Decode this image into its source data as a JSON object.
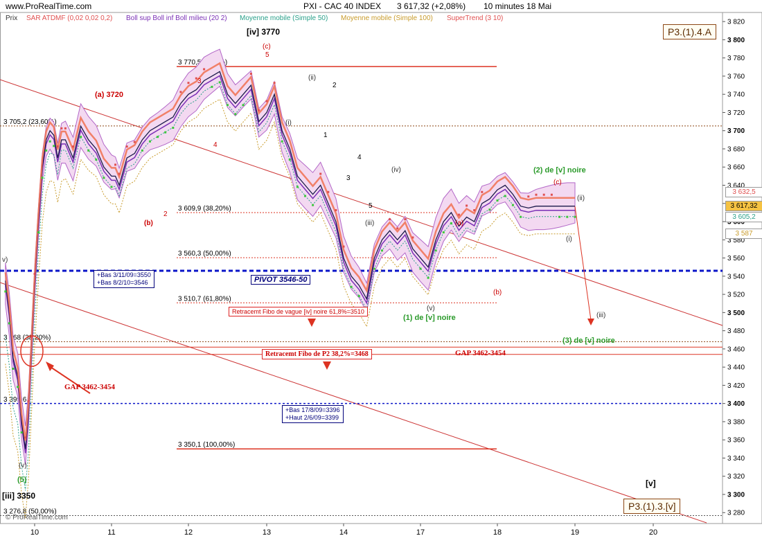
{
  "header": {
    "site": "www.ProRealTime.com",
    "instrument": "PXI - CAC 40 INDEX",
    "quote": "3 617,32 (+2,08%)",
    "period": "10 minutes  18 Mai"
  },
  "legend": [
    {
      "text": "Prix",
      "color": "#333333"
    },
    {
      "text": "SAR ATDMF (0,02 0,02 0,2)",
      "color": "#e05050"
    },
    {
      "text": "Boll sup Boll inf Boll milieu (20 2)",
      "color": "#7a2fb5"
    },
    {
      "text": "Moyenne mobile (Simple 50)",
      "color": "#2aa08a"
    },
    {
      "text": "Moyenne mobile (Simple 100)",
      "color": "#c89b2b"
    },
    {
      "text": "SuperTrend (3 10)",
      "color": "#e05050"
    }
  ],
  "boxes": {
    "top_right": "P3.(1).4.A",
    "bottom_right": "P3.(1).3.[v]"
  },
  "notes": {
    "pivot": "PIVOT 3546-50",
    "bas1": [
      "+Bas 3/11/09=3550",
      "+Bas 8/2/10=3546"
    ],
    "bas2": [
      "+Bas 17/8/09=3396",
      "+Haut 2/6/09=3399"
    ],
    "fibo_iv": "Retracemt Fibo de vague [iv] noire 61,8%=3510",
    "fibo_p2": "Retracemt Fibo de P2 38,2%=3468",
    "gap_right": "GAP 3462-3454",
    "gap_left": "GAP 3462-3454",
    "watermark": "© ProRealTime.com"
  },
  "fib_levels": [
    {
      "label": "3 770,5 (0,00%)",
      "value": 3770.5
    },
    {
      "label": "3 705,2 (23,60%)",
      "value": 3705.2
    },
    {
      "label": "3 609,9 (38,20%)",
      "value": 3609.9
    },
    {
      "label": "3 560,3 (50,00%)",
      "value": 3560.3
    },
    {
      "label": "3 510,7 (61,80%)",
      "value": 3510.7
    },
    {
      "label": "3 468 (38,20%)",
      "value": 3468
    },
    {
      "label": "3 399,6",
      "value": 3399.6
    },
    {
      "label": "3 350,1 (100,00%)",
      "value": 3350.1
    },
    {
      "label": "3 276,8 (50,00%)",
      "value": 3276.8
    }
  ],
  "wave_labels": {
    "iv_top": "[iv] 3770",
    "c_red": "(c)",
    "five": "5",
    "a_3720": "(a) 3720",
    "b_red": "(b)",
    "two": "2",
    "three_red": "3",
    "four_red": "4",
    "ii": "(ii)",
    "i": "(i)",
    "one": "1",
    "two_b": "2",
    "three_b": "3",
    "four_b": "4",
    "five_b": "5",
    "iii": "(iii)",
    "iv": "(iv)",
    "v": "(v)",
    "one_v_noire": "(1) de [v] noire",
    "two_v_noire": "(2) de [v] noire",
    "three_v_noire": "(3) de [v] noire",
    "a_red": "(a)",
    "b_red2": "(b)",
    "c_red2": "(c)",
    "ii_right": "(ii)",
    "i_right": "(i)",
    "iii_right": "(iii)",
    "v_left": "(v)",
    "five_green": "(5)",
    "iii_3350": "[iii] 3350",
    "v_bracket": "[v]",
    "v_left_edge": "v)"
  },
  "price_tags": [
    {
      "text": "3 632,5",
      "value": 3632.5,
      "color": "#e05050"
    },
    {
      "text": "3 617,32",
      "value": 3617.32,
      "color": "#000000",
      "bg": "#f5c242"
    },
    {
      "text": "3 605,2",
      "value": 3605.2,
      "color": "#2aa08a"
    },
    {
      "text": "3 587",
      "value": 3587,
      "color": "#c89b2b"
    }
  ],
  "chart_data": {
    "type": "line",
    "title": "PXI - CAC 40 INDEX",
    "ylim": [
      3268,
      3830
    ],
    "y_ticks": [
      3280,
      3300,
      3320,
      3340,
      3360,
      3380,
      3400,
      3420,
      3440,
      3460,
      3480,
      3500,
      3520,
      3540,
      3560,
      3580,
      3600,
      3620,
      3640,
      3660,
      3680,
      3700,
      3720,
      3740,
      3760,
      3780,
      3800,
      3820
    ],
    "y_tick_labels": [
      "3 280",
      "3 300",
      "3 320",
      "3 340",
      "3 360",
      "3 380",
      "3 400",
      "3 420",
      "3 440",
      "3 460",
      "3 480",
      "3 500",
      "3 520",
      "3 540",
      "3 560",
      "3 580",
      "3 600",
      "3 620",
      "3 640",
      "3 660",
      "3 680",
      "3 700",
      "3 720",
      "3 740",
      "3 760",
      "3 780",
      "3 800",
      "3 820"
    ],
    "x_ticks": [
      "10",
      "11",
      "12",
      "13",
      "14",
      "17",
      "18",
      "19",
      "20"
    ],
    "x_tick_positions": [
      0,
      1,
      2,
      3,
      4,
      5,
      6,
      7,
      8
    ],
    "x_range": [
      -0.38,
      8.95
    ],
    "series": [
      {
        "name": "Prix",
        "x": [
          -0.38,
          -0.33,
          -0.28,
          -0.22,
          -0.17,
          -0.12,
          -0.08,
          -0.04,
          0.0,
          0.05,
          0.1,
          0.15,
          0.2,
          0.25,
          0.3,
          0.35,
          0.4,
          0.5,
          0.6,
          0.7,
          0.8,
          0.9,
          1.0,
          1.05,
          1.1,
          1.2,
          1.3,
          1.4,
          1.5,
          1.6,
          1.7,
          1.8,
          1.9,
          2.0,
          2.1,
          2.2,
          2.3,
          2.4,
          2.5,
          2.6,
          2.7,
          2.8,
          2.9,
          3.0,
          3.1,
          3.2,
          3.3,
          3.4,
          3.5,
          3.6,
          3.7,
          3.8,
          3.9,
          4.0,
          4.1,
          4.2,
          4.3,
          4.4,
          4.5,
          4.6,
          4.7,
          4.8,
          4.9,
          5.0,
          5.1,
          5.2,
          5.3,
          5.4,
          5.5,
          5.6,
          5.7,
          5.8,
          5.9,
          6.0,
          6.1,
          6.2,
          6.3,
          6.4,
          6.5,
          6.6,
          6.7,
          6.8,
          6.9,
          7.0
        ],
        "values": [
          3535,
          3500,
          3450,
          3430,
          3380,
          3350,
          3390,
          3460,
          3530,
          3600,
          3660,
          3690,
          3700,
          3695,
          3670,
          3690,
          3690,
          3670,
          3705,
          3690,
          3680,
          3660,
          3650,
          3650,
          3640,
          3670,
          3675,
          3690,
          3700,
          3705,
          3710,
          3715,
          3730,
          3740,
          3745,
          3755,
          3760,
          3765,
          3740,
          3730,
          3740,
          3750,
          3710,
          3720,
          3740,
          3700,
          3680,
          3650,
          3640,
          3630,
          3640,
          3620,
          3600,
          3560,
          3540,
          3530,
          3515,
          3560,
          3580,
          3590,
          3580,
          3590,
          3570,
          3560,
          3550,
          3580,
          3600,
          3610,
          3595,
          3605,
          3600,
          3620,
          3625,
          3635,
          3640,
          3630,
          3617,
          3615,
          3617,
          3617,
          3617,
          3617,
          3617,
          3617
        ]
      }
    ]
  }
}
